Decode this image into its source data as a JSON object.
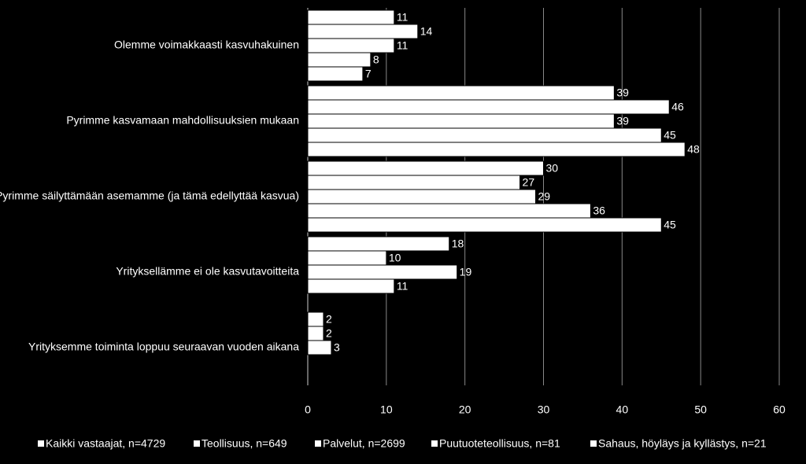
{
  "chart_data": {
    "type": "hbar",
    "categories": [
      "Olemme voimakkaasti kasvuhakuinen",
      "Pyrimme kasvamaan mahdollisuuksien mukaan",
      "Pyrimme säilyttämään asemamme (ja tämä edellyttää kasvua)",
      "Yrityksellämme ei ole kasvutavoitteita",
      "Yrityksemme toiminta loppuu seuraavan vuoden aikana"
    ],
    "series": [
      {
        "name": "Kaikki vastaajat, n=4729",
        "color": "#ffffff",
        "values": [
          11,
          39,
          30,
          18,
          2
        ]
      },
      {
        "name": "Teollisuus, n=649",
        "color": "#ffffff",
        "values": [
          14,
          46,
          27,
          10,
          2
        ]
      },
      {
        "name": "Palvelut, n=2699",
        "color": "#ffffff",
        "values": [
          11,
          39,
          29,
          19,
          3
        ]
      },
      {
        "name": "Puutuoteteollisuus, n=81",
        "color": "#ffffff",
        "values": [
          8,
          45,
          36,
          11,
          null
        ]
      },
      {
        "name": "Sahaus, höyläys ja kyllästys, n=21",
        "color": "#ffffff",
        "values": [
          7,
          48,
          45,
          null,
          null
        ]
      }
    ],
    "xlim": [
      0,
      60
    ],
    "xticks": [
      0,
      10,
      20,
      30,
      40,
      50,
      60
    ],
    "grid": true,
    "legend": "bottom"
  }
}
